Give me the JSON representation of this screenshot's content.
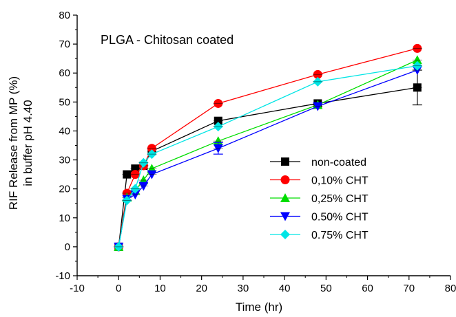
{
  "chart_data": {
    "type": "line",
    "annotation": "PLGA - Chitosan coated",
    "xlabel": "Time (hr)",
    "ylabel_lines": [
      "RIF Release from MP (%)",
      "in buffer pH  4.40"
    ],
    "xlim": [
      -10,
      80
    ],
    "ylim": [
      -10,
      80
    ],
    "xticks": [
      -10,
      0,
      10,
      20,
      30,
      40,
      50,
      60,
      70,
      80
    ],
    "yticks": [
      -10,
      0,
      10,
      20,
      30,
      40,
      50,
      60,
      70,
      80
    ],
    "legend_position": "right-middle",
    "series": [
      {
        "name": "non-coated",
        "color": "#000000",
        "marker": "square",
        "x": [
          0,
          2,
          4,
          6,
          8,
          24,
          48,
          72
        ],
        "y": [
          0,
          25,
          27,
          28,
          33,
          43.5,
          49.5,
          55
        ],
        "err": [
          0,
          0,
          0,
          0,
          0,
          0,
          0,
          6
        ]
      },
      {
        "name": "0,10% CHT",
        "color": "#ff0000",
        "marker": "circle",
        "x": [
          0,
          2,
          4,
          6,
          8,
          24,
          48,
          72
        ],
        "y": [
          0,
          18.5,
          25,
          28,
          34,
          49.5,
          59.5,
          68.5
        ],
        "err": [
          0,
          0,
          0,
          0,
          0,
          0,
          0,
          0
        ]
      },
      {
        "name": "0,25% CHT",
        "color": "#00dd00",
        "marker": "triangle-up",
        "x": [
          0,
          2,
          4,
          6,
          8,
          24,
          48,
          72
        ],
        "y": [
          0,
          17,
          19.5,
          23,
          27,
          36.5,
          49,
          64.5
        ],
        "err": [
          0,
          0,
          0,
          0,
          0,
          0,
          0,
          0
        ]
      },
      {
        "name": "0.50% CHT",
        "color": "#0000ff",
        "marker": "triangle-down",
        "x": [
          0,
          2,
          4,
          6,
          8,
          24,
          48,
          72
        ],
        "y": [
          0,
          16.5,
          18,
          21,
          25,
          34,
          48.5,
          61
        ],
        "err": [
          0,
          0,
          0,
          0,
          0,
          2,
          0,
          0
        ]
      },
      {
        "name": "0.75% CHT",
        "color": "#00e5e5",
        "marker": "diamond",
        "x": [
          0,
          2,
          4,
          6,
          8,
          24,
          48,
          72
        ],
        "y": [
          0,
          16,
          20,
          29,
          32,
          41.5,
          57,
          62.5
        ],
        "err": [
          0,
          0,
          0,
          0,
          0,
          0,
          0,
          0
        ]
      }
    ]
  }
}
